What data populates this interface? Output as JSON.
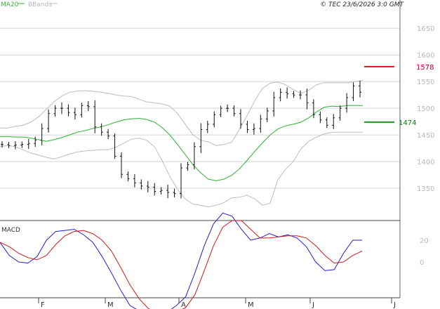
{
  "header": {
    "legend_ma": "MA20",
    "legend_bb": "BBands",
    "copyright": "© TEC 23/6/2026 3:0 GMT"
  },
  "macd_panel": {
    "label": "MACD"
  },
  "colors": {
    "price": "#111111",
    "ma": "#2db22d",
    "bbands": "#bdbdbd",
    "grid": "#d4d4d4",
    "macd": "#2020d0",
    "signal": "#d01818",
    "resistance": "#d01818",
    "support": "#1a9a1a"
  },
  "chart_data": [
    {
      "type": "ohlc",
      "title": "",
      "y_ticks": [
        "1650",
        "1600",
        "1550",
        "1500",
        "1450",
        "1400",
        "1350"
      ],
      "ylim": [
        1300,
        1668
      ],
      "x_ticks": [
        "F",
        "M",
        "M",
        "A",
        "M",
        "J",
        "J"
      ],
      "levels": [
        {
          "name": "resistance",
          "value": 1578,
          "label": "1578"
        },
        {
          "name": "support",
          "value": 1474,
          "label": "1474"
        }
      ],
      "series": [
        {
          "name": "MA20",
          "values": [
            1447,
            1447,
            1446,
            1446,
            1444,
            1441,
            1438,
            1441,
            1445,
            1450,
            1455,
            1458,
            1462,
            1465,
            1469,
            1474,
            1478,
            1480,
            1481,
            1479,
            1474,
            1464,
            1450,
            1432,
            1413,
            1394,
            1379,
            1367,
            1364,
            1367,
            1374,
            1386,
            1402,
            1419,
            1435,
            1450,
            1461,
            1467,
            1470,
            1474,
            1482,
            1493,
            1502,
            1504,
            1503,
            1505,
            1505,
            1505
          ]
        },
        {
          "name": "BBands upper",
          "values": [
            1463,
            1463,
            1466,
            1468,
            1474,
            1484,
            1498,
            1512,
            1523,
            1530,
            1532,
            1533,
            1532,
            1530,
            1528,
            1525,
            1523,
            1522,
            1517,
            1512,
            1510,
            1508,
            1504,
            1490,
            1470,
            1450,
            1440,
            1437,
            1430,
            1432,
            1436,
            1460,
            1486,
            1514,
            1537,
            1547,
            1549,
            1544,
            1535,
            1528,
            1534,
            1544,
            1548,
            1548,
            1548,
            1548,
            1550,
            1552
          ]
        },
        {
          "name": "BBands lower",
          "values": [
            1428,
            1430,
            1428,
            1422,
            1416,
            1412,
            1408,
            1405,
            1409,
            1414,
            1418,
            1420,
            1421,
            1422,
            1422,
            1427,
            1434,
            1442,
            1444,
            1440,
            1428,
            1402,
            1372,
            1348,
            1330,
            1320,
            1318,
            1315,
            1318,
            1323,
            1332,
            1333,
            1337,
            1330,
            1318,
            1322,
            1366,
            1386,
            1400,
            1424,
            1438,
            1446,
            1452,
            1455,
            1455,
            1455,
            1455,
            1455
          ]
        },
        {
          "name": "Price",
          "values": [
            1432,
            1430,
            1431,
            1432,
            1434,
            1440,
            1462,
            1490,
            1500,
            1500,
            1492,
            1488,
            1505,
            1503,
            1465,
            1455,
            1448,
            1410,
            1376,
            1368,
            1360,
            1354,
            1352,
            1344,
            1346,
            1342,
            1340,
            1388,
            1394,
            1428,
            1460,
            1470,
            1488,
            1500,
            1500,
            1490,
            1470,
            1460,
            1462,
            1480,
            1495,
            1520,
            1530,
            1527,
            1525,
            1525,
            1510,
            1488,
            1478,
            1468,
            1482,
            1500,
            1520,
            1542,
            1530
          ]
        }
      ]
    },
    {
      "type": "line",
      "title": "MACD",
      "y_ticks": [
        "20",
        "0"
      ],
      "ylim": [
        -50,
        45
      ],
      "series": [
        {
          "name": "MACD",
          "values": [
            18,
            6,
            0,
            -1,
            5,
            20,
            28,
            29,
            30,
            25,
            18,
            5,
            -10,
            -26,
            -40,
            -45,
            -50,
            -48,
            -46,
            -40,
            -32,
            -10,
            15,
            35,
            45,
            42,
            30,
            20,
            22,
            26,
            23,
            25,
            22,
            14,
            0,
            -8,
            -7,
            8,
            20,
            20
          ]
        },
        {
          "name": "Signal",
          "values": [
            18,
            14,
            8,
            4,
            2,
            6,
            16,
            24,
            28,
            29,
            26,
            20,
            10,
            -5,
            -21,
            -34,
            -43,
            -46,
            -47,
            -46,
            -42,
            -30,
            -8,
            15,
            32,
            38,
            38,
            30,
            22,
            22,
            23,
            24,
            24,
            22,
            15,
            6,
            -1,
            0,
            6,
            10
          ]
        }
      ]
    }
  ]
}
